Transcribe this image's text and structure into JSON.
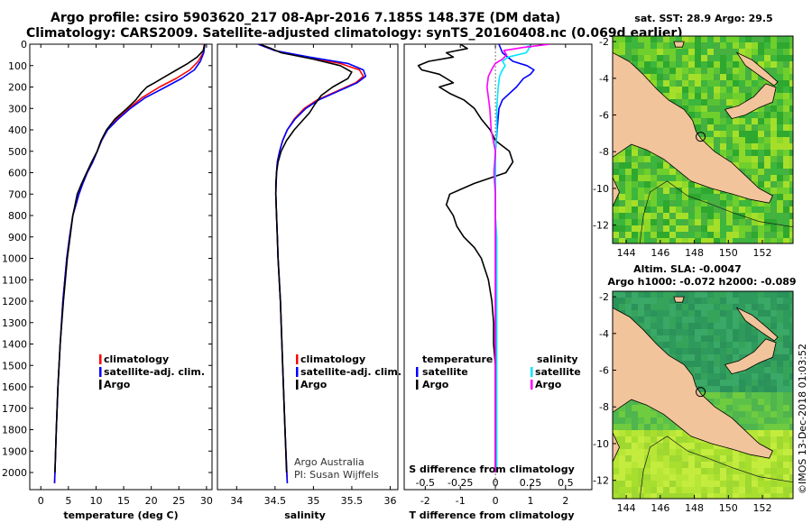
{
  "header": {
    "title_line1": "Argo profile: csiro 5903620_217 08-Apr-2016 7.185S 148.37E (DM data)",
    "title_line2": "Climatology: CARS2009. Satellite-adjusted climatology: synTS_20160408.nc (0.069d earlier)"
  },
  "colors": {
    "climatology": "#ff0000",
    "satellite": "#0000ff",
    "argo": "#000000",
    "sat_salinity": "#00e5ff",
    "argo_salinity": "#ff00ff",
    "land": "#f2c49b"
  },
  "chart_data": [
    {
      "id": "temperature",
      "type": "line",
      "xlabel": "temperature (deg C)",
      "ylabel": "",
      "xlim": [
        -2,
        31
      ],
      "ylim": [
        2080,
        0
      ],
      "xticks": [
        0,
        5,
        10,
        15,
        20,
        25,
        30
      ],
      "yticks": [
        0,
        100,
        200,
        300,
        400,
        500,
        600,
        700,
        800,
        900,
        1000,
        1100,
        1200,
        1300,
        1400,
        1500,
        1600,
        1700,
        1800,
        1900,
        2000
      ],
      "legend": [
        "climatology",
        "satellite-adj. clim.",
        "Argo"
      ],
      "series": [
        {
          "name": "climatology",
          "color": "#ff0000",
          "depth": [
            0,
            40,
            80,
            120,
            160,
            200,
            250,
            300,
            350,
            400,
            450,
            500,
            550,
            600,
            650,
            700,
            800,
            900,
            1000,
            1200,
            1400,
            1600,
            1800,
            2000,
            2050
          ],
          "values": [
            29.6,
            29.4,
            28.5,
            27.0,
            24.5,
            21.5,
            18.3,
            15.9,
            13.8,
            12.0,
            11.0,
            10.2,
            9.4,
            8.4,
            7.6,
            6.9,
            5.8,
            5.2,
            4.7,
            4.0,
            3.5,
            3.1,
            2.8,
            2.55,
            2.5
          ]
        },
        {
          "name": "satellite-adj. clim.",
          "color": "#0000ff",
          "depth": [
            0,
            40,
            80,
            120,
            160,
            200,
            250,
            300,
            350,
            400,
            450,
            500,
            550,
            600,
            650,
            700,
            800,
            900,
            1000,
            1200,
            1400,
            1600,
            1800,
            2000,
            2050
          ],
          "values": [
            29.7,
            29.5,
            28.9,
            27.8,
            25.5,
            22.6,
            18.9,
            16.2,
            14.0,
            12.1,
            11.0,
            10.2,
            9.4,
            8.4,
            7.6,
            6.9,
            5.8,
            5.2,
            4.7,
            4.0,
            3.5,
            3.1,
            2.8,
            2.55,
            2.5
          ]
        },
        {
          "name": "Argo",
          "color": "#000000",
          "depth": [
            0,
            30,
            60,
            90,
            120,
            150,
            180,
            200,
            230,
            260,
            300,
            350,
            400,
            450,
            500,
            550,
            600,
            650,
            700,
            750,
            800,
            900,
            1000,
            1200,
            1400,
            1600,
            1800,
            2000
          ],
          "values": [
            29.7,
            29.4,
            28.3,
            26.6,
            24.6,
            22.6,
            20.6,
            19.2,
            18.1,
            17.2,
            15.6,
            13.4,
            11.9,
            10.9,
            10.2,
            9.2,
            8.3,
            7.4,
            6.6,
            6.2,
            5.8,
            5.3,
            4.8,
            4.1,
            3.5,
            3.1,
            2.8,
            2.55
          ]
        }
      ]
    },
    {
      "id": "salinity",
      "type": "line",
      "xlabel": "salinity",
      "ylabel": "",
      "xlim": [
        33.75,
        36.1
      ],
      "ylim": [
        2080,
        0
      ],
      "xticks": [
        34,
        34.5,
        35,
        35.5,
        36
      ],
      "xtick_labels": [
        "34",
        "34.5",
        "35",
        "35.5",
        "36"
      ],
      "legend": [
        "climatology",
        "satellite-adj. clim.",
        "Argo"
      ],
      "series": [
        {
          "name": "climatology",
          "color": "#ff0000",
          "depth": [
            0,
            30,
            60,
            90,
            120,
            150,
            180,
            220,
            260,
            300,
            350,
            400,
            450,
            500,
            550,
            600,
            700,
            800,
            900,
            1000,
            1200,
            1500,
            1800,
            2050
          ],
          "values": [
            34.28,
            34.5,
            34.9,
            35.35,
            35.6,
            35.65,
            35.55,
            35.3,
            35.05,
            34.88,
            34.75,
            34.66,
            34.6,
            34.56,
            34.53,
            34.52,
            34.51,
            34.52,
            34.53,
            34.54,
            34.57,
            34.6,
            34.63,
            34.66
          ]
        },
        {
          "name": "satellite-adj. clim.",
          "color": "#0000ff",
          "depth": [
            0,
            30,
            60,
            90,
            120,
            150,
            180,
            220,
            260,
            300,
            350,
            400,
            450,
            500,
            550,
            600,
            700,
            800,
            900,
            1000,
            1200,
            1500,
            1800,
            2050
          ],
          "values": [
            34.28,
            34.5,
            34.95,
            35.45,
            35.65,
            35.68,
            35.57,
            35.32,
            35.07,
            34.9,
            34.76,
            34.66,
            34.6,
            34.56,
            34.53,
            34.52,
            34.51,
            34.52,
            34.53,
            34.54,
            34.57,
            34.6,
            34.63,
            34.66
          ]
        },
        {
          "name": "Argo",
          "color": "#000000",
          "depth": [
            0,
            20,
            40,
            70,
            100,
            130,
            160,
            200,
            240,
            280,
            320,
            360,
            400,
            450,
            500,
            550,
            600,
            650,
            700,
            800,
            900,
            1000,
            1200,
            1500,
            1800,
            2000
          ],
          "values": [
            34.3,
            34.45,
            34.58,
            35.0,
            35.35,
            35.5,
            35.45,
            35.25,
            35.1,
            35.02,
            34.95,
            34.85,
            34.75,
            34.65,
            34.58,
            34.54,
            34.52,
            34.51,
            34.51,
            34.52,
            34.53,
            34.54,
            34.57,
            34.6,
            34.63,
            34.65
          ]
        }
      ]
    },
    {
      "id": "difference",
      "type": "line",
      "xlabel": "T difference from climatology",
      "x2label": "S difference from climatology",
      "xlim": [
        -2.6,
        2.75
      ],
      "xticks": [
        -2,
        -1,
        0,
        1,
        2
      ],
      "x2lim": [
        -0.65,
        0.6875
      ],
      "x2ticks": [
        -0.5,
        -0.25,
        0,
        0.25,
        0.5
      ],
      "x2tick_labels": [
        "-0.5",
        "-0.25",
        "0",
        "0.25",
        "0.5"
      ],
      "ylim": [
        2080,
        0
      ],
      "legend_temperature": [
        "temperature",
        "satellite",
        "Argo"
      ],
      "legend_salinity": [
        "salinity",
        "satellite",
        "Argo"
      ],
      "series": [
        {
          "name": "temperature satellite",
          "color": "#0000ff",
          "axis": "T",
          "depth": [
            0,
            40,
            80,
            100,
            120,
            140,
            160,
            200,
            260,
            300,
            400,
            500,
            600,
            700,
            800,
            1000,
            1500,
            2000
          ],
          "values": [
            0.1,
            0.2,
            0.5,
            0.9,
            1.1,
            1.0,
            0.8,
            0.6,
            0.2,
            0.1,
            0.05,
            0.0,
            0.0,
            0.0,
            0.0,
            0.0,
            0.0,
            0.0
          ]
        },
        {
          "name": "temperature Argo",
          "color": "#000000",
          "axis": "T",
          "depth": [
            0,
            20,
            40,
            60,
            80,
            100,
            120,
            140,
            160,
            180,
            200,
            230,
            260,
            300,
            350,
            400,
            450,
            500,
            550,
            600,
            650,
            700,
            750,
            800,
            850,
            900,
            950,
            1000,
            1100,
            1200,
            1300,
            1400,
            1500,
            1600,
            1700,
            1800,
            1900,
            2000
          ],
          "values": [
            -1.0,
            -0.8,
            -1.4,
            -1.2,
            -1.9,
            -2.2,
            -2.1,
            -1.6,
            -1.4,
            -1.2,
            -1.6,
            -1.3,
            -0.9,
            -0.6,
            -0.4,
            -0.15,
            0.0,
            0.4,
            0.5,
            0.3,
            -0.6,
            -1.3,
            -1.4,
            -1.2,
            -1.1,
            -0.9,
            -0.6,
            -0.4,
            -0.2,
            -0.1,
            -0.05,
            -0.05,
            0.0,
            0.0,
            0.0,
            0.0,
            0.0,
            0.0
          ]
        },
        {
          "name": "salinity satellite",
          "color": "#00e5ff",
          "axis": "S",
          "depth": [
            0,
            20,
            40,
            60,
            80,
            100,
            120,
            150,
            200,
            300,
            400,
            500,
            600,
            700,
            800,
            900,
            1000,
            1200,
            1500,
            1800,
            2000
          ],
          "values": [
            0.23,
            0.24,
            0.22,
            0.09,
            0.05,
            0.07,
            0.05,
            0.03,
            0.02,
            0.01,
            0.01,
            0.0,
            0.0,
            0.0,
            0.0,
            0.01,
            0.01,
            0.01,
            0.01,
            0.01,
            0.01
          ]
        },
        {
          "name": "salinity Argo",
          "color": "#ff00ff",
          "axis": "S",
          "depth": [
            0,
            15,
            30,
            50,
            70,
            90,
            110,
            150,
            200,
            300,
            400,
            500,
            600,
            700,
            800,
            900,
            1000,
            1200,
            1500,
            1800,
            2000
          ],
          "values": [
            0.39,
            0.2,
            0.06,
            0.08,
            0.05,
            0.0,
            -0.02,
            -0.05,
            -0.06,
            -0.04,
            -0.03,
            0.0,
            -0.01,
            0.0,
            0.0,
            0.0,
            0.0,
            0.0,
            0.0,
            0.0,
            0.0
          ]
        }
      ],
      "notes": [
        "Argo Australia",
        "PI: Susan Wijffels"
      ]
    },
    {
      "id": "sst_map",
      "type": "heatmap",
      "title": "sat. SST: 28.9 Argo: 29.5",
      "xlim": [
        143.2,
        153.8
      ],
      "ylim": [
        -13,
        -1.7
      ],
      "xticks": [
        144,
        146,
        148,
        150,
        152
      ],
      "yticks": [
        -2,
        -4,
        -6,
        -8,
        -10,
        -12
      ],
      "profile_location": [
        148.37,
        -7.185
      ]
    },
    {
      "id": "sla_map",
      "type": "heatmap",
      "title_line1": "Altim. SLA: -0.0047",
      "title_line2": "Argo h1000: -0.072 h2000: -0.089",
      "xlim": [
        143.2,
        153.8
      ],
      "ylim": [
        -13,
        -1.7
      ],
      "xticks": [
        144,
        146,
        148,
        150,
        152
      ],
      "yticks": [
        -2,
        -4,
        -6,
        -8,
        -10,
        -12
      ],
      "profile_location": [
        148.37,
        -7.185
      ]
    }
  ],
  "footer": {
    "stamp": "©IMOS 13-Dec-2018 01:03:52"
  }
}
